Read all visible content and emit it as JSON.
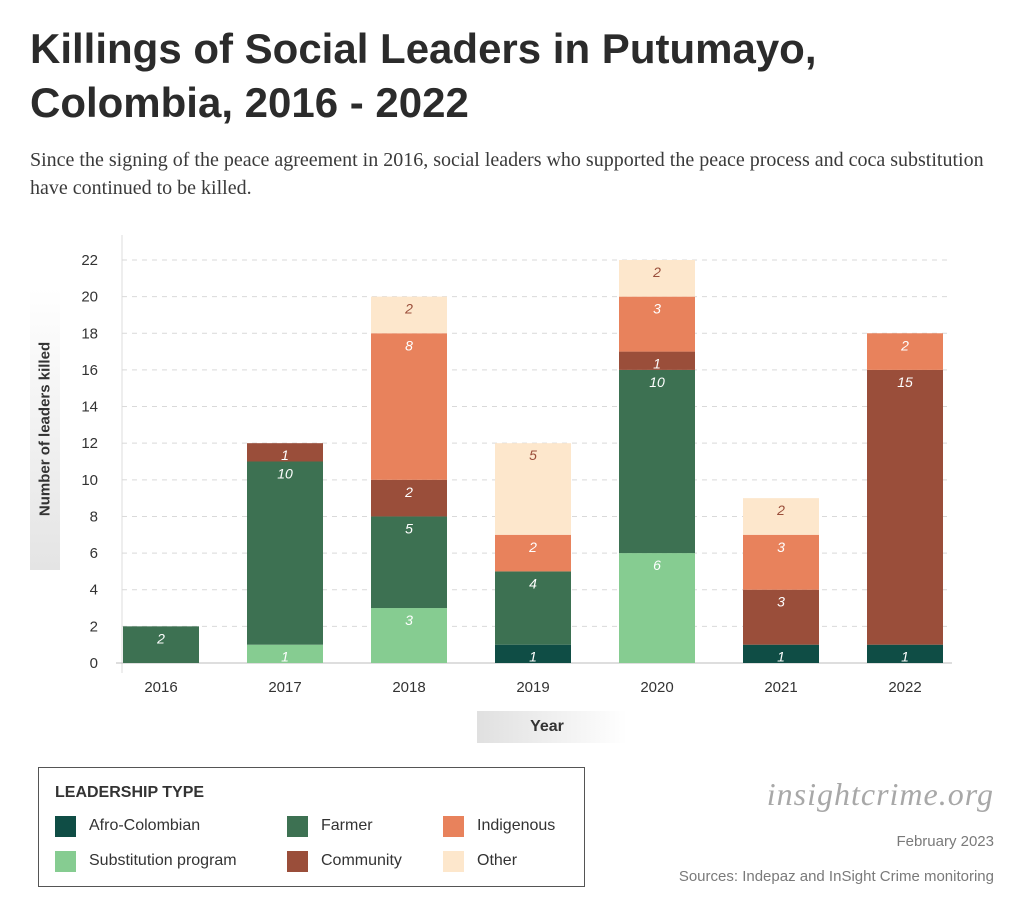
{
  "header": {
    "title": "Killings of Social Leaders in Putumayo, Colombia, 2016 - 2022",
    "subtitle": "Since the signing of the peace agreement in 2016, social leaders who supported the peace process and coca substitution have continued to be killed."
  },
  "chart_data": {
    "type": "bar",
    "stacked": true,
    "title": "Killings of Social Leaders in Putumayo, Colombia, 2016 - 2022",
    "xlabel": "Year",
    "ylabel": "Number of leaders killed",
    "ylim": [
      0,
      22
    ],
    "yticks": [
      0,
      2,
      4,
      6,
      8,
      10,
      12,
      14,
      16,
      18,
      20,
      22
    ],
    "grid": true,
    "categories": [
      "2016",
      "2017",
      "2018",
      "2019",
      "2020",
      "2021",
      "2022"
    ],
    "series": [
      {
        "name": "Afro-Colombian",
        "color": "#0f4d45",
        "values": [
          0,
          0,
          0,
          1,
          0,
          1,
          1
        ]
      },
      {
        "name": "Substitution program",
        "color": "#86cc91",
        "values": [
          0,
          1,
          3,
          0,
          6,
          0,
          0
        ]
      },
      {
        "name": "Farmer",
        "color": "#3d7152",
        "values": [
          2,
          10,
          5,
          4,
          10,
          0,
          0
        ]
      },
      {
        "name": "Community",
        "color": "#9a4e3a",
        "values": [
          0,
          1,
          2,
          0,
          1,
          3,
          15
        ]
      },
      {
        "name": "Indigenous",
        "color": "#e8825c",
        "values": [
          0,
          0,
          8,
          2,
          3,
          3,
          2
        ]
      },
      {
        "name": "Other",
        "color": "#fde7cc",
        "values": [
          0,
          0,
          2,
          5,
          2,
          2,
          0
        ]
      }
    ],
    "legend": {
      "title": "LEADERSHIP TYPE",
      "position": "bottom-left",
      "order": [
        "Afro-Colombian",
        "Farmer",
        "Indigenous",
        "Substitution program",
        "Community",
        "Other"
      ]
    }
  },
  "footer": {
    "brand": "insightcrime.org",
    "date": "February 2023",
    "sources": "Sources: Indepaz and InSight Crime monitoring"
  }
}
